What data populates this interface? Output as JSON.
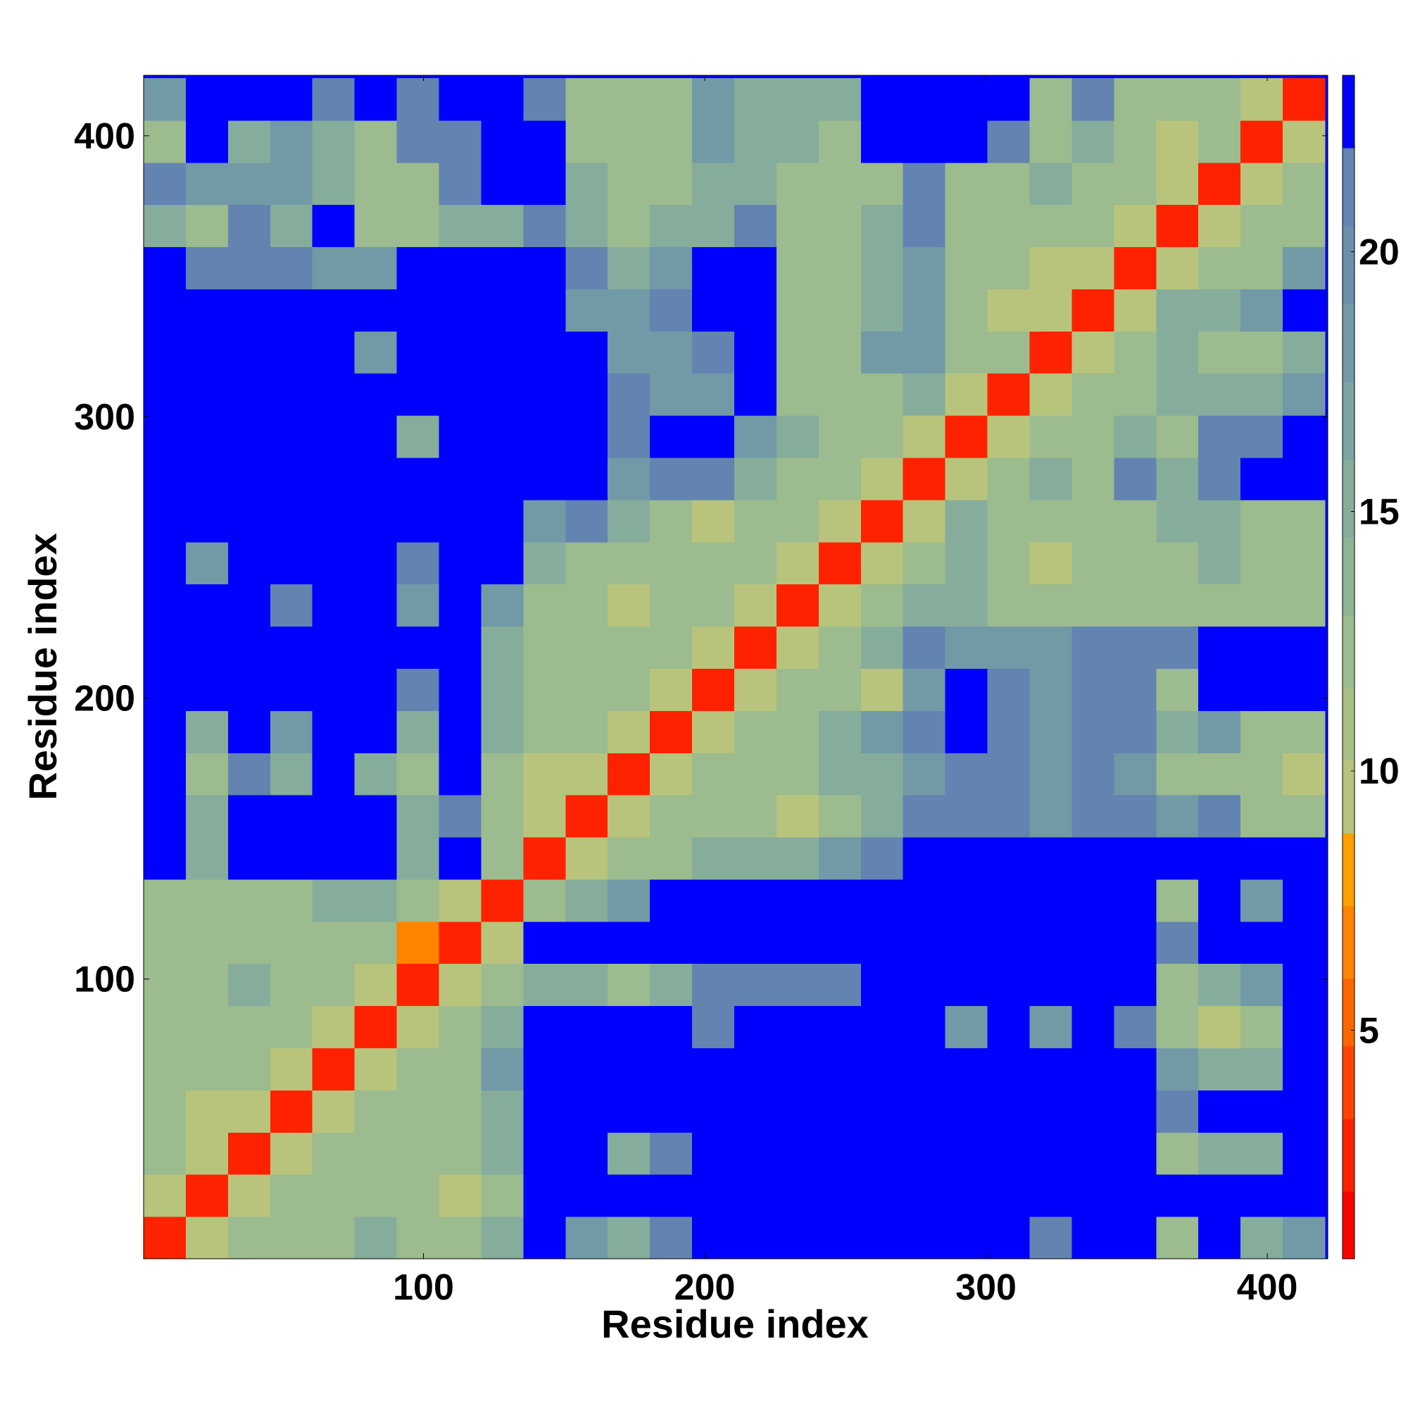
{
  "chart_data": {
    "type": "heatmap",
    "xlabel": "Residue index",
    "ylabel": "Residue index",
    "xlim": [
      0.5,
      421.5
    ],
    "ylim": [
      0.5,
      421.5
    ],
    "xticks": [
      100,
      200,
      300,
      400
    ],
    "yticks": [
      100,
      200,
      300,
      400
    ],
    "x_bins": [
      0.5,
      15.5,
      30.5,
      45.5,
      60.5,
      75.5,
      90.5,
      105.5,
      120.5,
      135.5,
      150.5,
      165.5,
      180.5,
      195.5,
      210.5,
      225.5,
      240.5,
      255.5,
      270.5,
      285.5,
      300.5,
      315.5,
      330.5,
      345.5,
      360.5,
      375.5,
      390.5,
      405.5,
      420.5
    ],
    "y_bins": [
      0.5,
      15.5,
      30.5,
      45.5,
      60.5,
      75.5,
      90.5,
      105.5,
      120.5,
      135.5,
      150.5,
      165.5,
      180.5,
      195.5,
      210.5,
      225.5,
      240.5,
      255.5,
      270.5,
      285.5,
      300.5,
      315.5,
      330.5,
      345.5,
      360.5,
      375.5,
      390.5,
      405.5,
      420.5
    ],
    "z": [
      [
        2,
        9,
        12,
        12,
        12,
        15,
        12,
        12,
        15,
        23,
        18,
        15,
        21,
        23,
        23,
        23,
        23,
        23,
        23,
        23,
        23,
        21,
        23,
        23,
        12,
        23,
        15,
        18
      ],
      [
        9,
        2,
        9,
        12,
        12,
        12,
        12,
        9,
        12,
        23,
        23,
        23,
        23,
        23,
        23,
        23,
        23,
        23,
        23,
        23,
        23,
        23,
        23,
        23,
        23,
        23,
        23,
        23
      ],
      [
        12,
        9,
        2,
        9,
        12,
        12,
        12,
        12,
        15,
        23,
        23,
        15,
        21,
        23,
        23,
        23,
        23,
        23,
        23,
        23,
        23,
        23,
        23,
        23,
        12,
        15,
        15,
        23
      ],
      [
        12,
        9,
        9,
        2,
        9,
        12,
        12,
        12,
        15,
        23,
        23,
        23,
        23,
        23,
        23,
        23,
        23,
        23,
        23,
        23,
        23,
        23,
        23,
        23,
        21,
        23,
        23,
        23
      ],
      [
        12,
        12,
        12,
        9,
        2,
        9,
        12,
        12,
        18,
        23,
        23,
        23,
        23,
        23,
        23,
        23,
        23,
        23,
        23,
        23,
        23,
        23,
        23,
        23,
        18,
        15,
        15,
        23
      ],
      [
        12,
        12,
        12,
        12,
        9,
        2,
        9,
        12,
        15,
        23,
        23,
        23,
        23,
        21,
        23,
        23,
        23,
        23,
        23,
        18,
        23,
        18,
        23,
        21,
        12,
        9,
        12,
        23
      ],
      [
        12,
        12,
        15,
        12,
        12,
        9,
        2,
        9,
        12,
        15,
        15,
        12,
        15,
        21,
        21,
        21,
        21,
        23,
        23,
        23,
        23,
        23,
        23,
        23,
        12,
        15,
        18,
        23
      ],
      [
        12,
        12,
        12,
        12,
        12,
        12,
        6,
        2,
        9,
        23,
        23,
        23,
        23,
        23,
        23,
        23,
        23,
        23,
        23,
        23,
        23,
        23,
        23,
        23,
        21,
        23,
        23,
        23
      ],
      [
        12,
        12,
        12,
        12,
        15,
        15,
        12,
        9,
        2,
        12,
        15,
        18,
        23,
        23,
        23,
        23,
        23,
        23,
        23,
        23,
        23,
        23,
        23,
        23,
        12,
        23,
        18,
        23
      ],
      [
        23,
        15,
        23,
        23,
        23,
        23,
        15,
        23,
        12,
        2,
        9,
        12,
        12,
        15,
        15,
        15,
        18,
        21,
        23,
        23,
        23,
        23,
        23,
        23,
        23,
        23,
        23,
        23
      ],
      [
        23,
        15,
        23,
        23,
        23,
        23,
        15,
        21,
        12,
        9,
        2,
        9,
        12,
        12,
        12,
        9,
        12,
        15,
        21,
        21,
        21,
        18,
        21,
        21,
        18,
        21,
        12,
        12
      ],
      [
        23,
        12,
        21,
        15,
        23,
        15,
        12,
        23,
        12,
        9,
        9,
        2,
        9,
        12,
        12,
        12,
        15,
        15,
        18,
        21,
        21,
        18,
        21,
        18,
        12,
        12,
        12,
        9
      ],
      [
        23,
        15,
        23,
        18,
        23,
        23,
        15,
        23,
        15,
        12,
        12,
        9,
        2,
        9,
        12,
        12,
        15,
        18,
        21,
        23,
        21,
        18,
        21,
        21,
        15,
        18,
        12,
        12
      ],
      [
        23,
        23,
        23,
        23,
        23,
        23,
        21,
        23,
        15,
        12,
        12,
        12,
        9,
        2,
        9,
        12,
        12,
        9,
        18,
        23,
        21,
        18,
        21,
        21,
        12,
        23,
        23,
        23
      ],
      [
        23,
        23,
        23,
        23,
        23,
        23,
        23,
        23,
        15,
        12,
        12,
        12,
        12,
        9,
        2,
        9,
        12,
        15,
        21,
        18,
        18,
        18,
        21,
        21,
        21,
        23,
        23,
        23
      ],
      [
        23,
        23,
        23,
        21,
        23,
        23,
        18,
        23,
        18,
        12,
        12,
        9,
        12,
        12,
        9,
        2,
        9,
        12,
        15,
        15,
        12,
        12,
        12,
        12,
        12,
        12,
        12,
        12
      ],
      [
        23,
        18,
        23,
        23,
        23,
        23,
        21,
        23,
        23,
        15,
        12,
        12,
        12,
        12,
        12,
        9,
        2,
        9,
        12,
        15,
        12,
        9,
        12,
        12,
        12,
        15,
        12,
        12
      ],
      [
        23,
        23,
        23,
        23,
        23,
        23,
        23,
        23,
        23,
        18,
        21,
        15,
        12,
        9,
        12,
        12,
        9,
        2,
        9,
        15,
        12,
        12,
        12,
        12,
        15,
        15,
        12,
        12
      ],
      [
        23,
        23,
        23,
        23,
        23,
        23,
        23,
        23,
        23,
        23,
        23,
        18,
        21,
        21,
        15,
        12,
        12,
        9,
        2,
        9,
        12,
        15,
        12,
        21,
        15,
        21,
        23,
        23
      ],
      [
        23,
        23,
        23,
        23,
        23,
        23,
        15,
        23,
        23,
        23,
        23,
        21,
        23,
        23,
        18,
        15,
        12,
        12,
        9,
        2,
        9,
        12,
        12,
        15,
        12,
        21,
        21,
        23
      ],
      [
        23,
        23,
        23,
        23,
        23,
        23,
        23,
        23,
        23,
        23,
        23,
        21,
        18,
        18,
        23,
        12,
        12,
        12,
        15,
        9,
        2,
        9,
        12,
        12,
        15,
        15,
        15,
        18
      ],
      [
        23,
        23,
        23,
        23,
        23,
        18,
        23,
        23,
        23,
        23,
        23,
        18,
        18,
        21,
        23,
        12,
        12,
        18,
        18,
        12,
        12,
        2,
        9,
        12,
        15,
        12,
        12,
        15
      ],
      [
        23,
        23,
        23,
        23,
        23,
        23,
        23,
        23,
        23,
        23,
        18,
        18,
        21,
        23,
        23,
        12,
        12,
        15,
        18,
        12,
        9,
        9,
        2,
        9,
        15,
        15,
        18,
        23
      ],
      [
        23,
        21,
        21,
        21,
        18,
        18,
        23,
        23,
        23,
        23,
        21,
        15,
        18,
        23,
        23,
        12,
        12,
        15,
        18,
        12,
        12,
        9,
        9,
        2,
        9,
        12,
        12,
        18
      ],
      [
        15,
        12,
        21,
        15,
        23,
        12,
        12,
        15,
        15,
        21,
        15,
        12,
        15,
        15,
        21,
        12,
        12,
        15,
        21,
        12,
        12,
        12,
        12,
        9,
        2,
        9,
        12,
        12
      ],
      [
        21,
        18,
        18,
        18,
        15,
        12,
        12,
        21,
        23,
        23,
        15,
        12,
        12,
        15,
        15,
        12,
        12,
        12,
        21,
        12,
        12,
        15,
        12,
        12,
        9,
        2,
        9,
        12
      ],
      [
        12,
        23,
        15,
        18,
        15,
        12,
        21,
        21,
        23,
        23,
        12,
        12,
        12,
        18,
        15,
        15,
        12,
        23,
        23,
        23,
        21,
        12,
        15,
        12,
        9,
        12,
        2,
        9
      ],
      [
        18,
        23,
        23,
        23,
        21,
        23,
        21,
        23,
        23,
        21,
        12,
        12,
        12,
        18,
        15,
        15,
        15,
        23,
        23,
        23,
        23,
        12,
        21,
        12,
        12,
        12,
        9,
        2
      ]
    ],
    "colorbar": {
      "lim": [
        0.6,
        23.4
      ],
      "ticks": [
        5,
        10,
        15,
        20
      ],
      "levels": [
        0.6,
        1.9,
        3.3,
        4.7,
        6.0,
        7.4,
        8.8,
        10.2,
        11.6,
        13.0,
        14.5,
        16.0,
        17.5,
        19.0,
        20.5,
        22.0,
        23.4
      ],
      "colors": [
        "#ff0000",
        "#ff2200",
        "#ff4400",
        "#ff6600",
        "#ff8400",
        "#ffa000",
        "#b8c47c",
        "#a8c086",
        "#9cbb8e",
        "#90b595",
        "#86ad9b",
        "#7ca4a1",
        "#7299a6",
        "#6a8eab",
        "#6383b0",
        "#0000ff"
      ]
    }
  }
}
